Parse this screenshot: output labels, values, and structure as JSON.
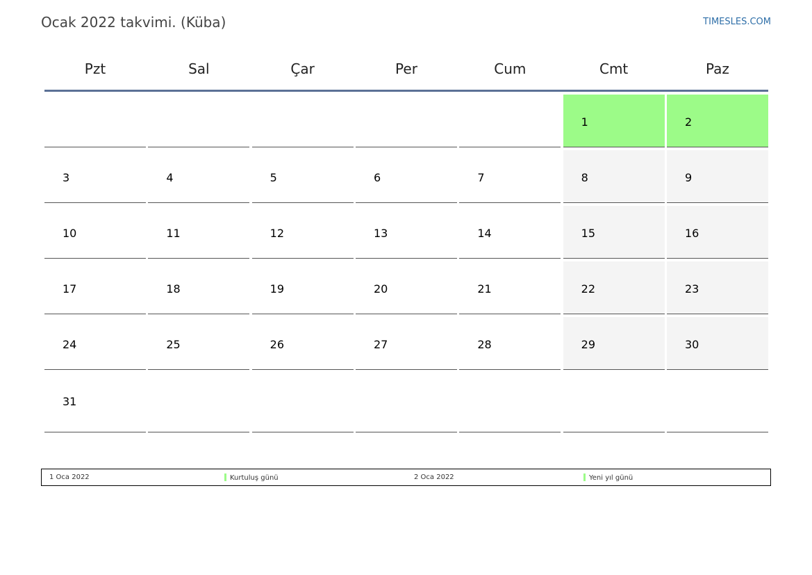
{
  "header": {
    "title": "Ocak 2022 takvimi. (Küba)",
    "site": "TIMESLES.COM"
  },
  "weekdays": [
    "Pzt",
    "Sal",
    "Çar",
    "Per",
    "Cum",
    "Cmt",
    "Paz"
  ],
  "weeks": [
    [
      "",
      "",
      "",
      "",
      "",
      "1",
      "2"
    ],
    [
      "3",
      "4",
      "5",
      "6",
      "7",
      "8",
      "9"
    ],
    [
      "10",
      "11",
      "12",
      "13",
      "14",
      "15",
      "16"
    ],
    [
      "17",
      "18",
      "19",
      "20",
      "21",
      "22",
      "23"
    ],
    [
      "24",
      "25",
      "26",
      "27",
      "28",
      "29",
      "30"
    ],
    [
      "31",
      "",
      "",
      "",
      "",
      "",
      ""
    ]
  ],
  "holidays": [
    {
      "date": "1 Oca 2022",
      "name": "Kurtuluş günü"
    },
    {
      "date": "2 Oca 2022",
      "name": "Yeni yıl günü"
    }
  ],
  "colors": {
    "holiday": "#9cfb88",
    "weekend": "#f4f4f4",
    "header_rule": "#5b7196",
    "link": "#2f6fa8"
  }
}
